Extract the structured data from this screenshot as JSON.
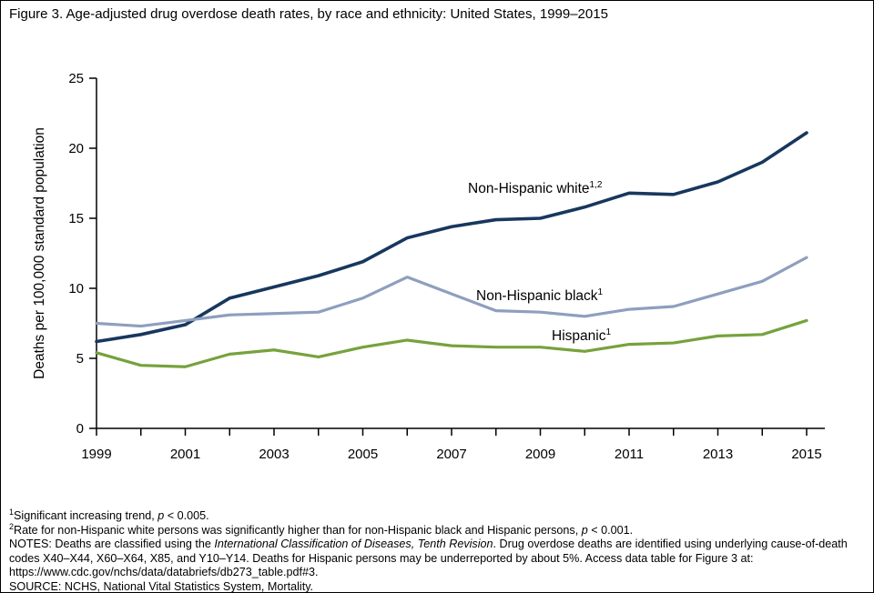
{
  "figure": {
    "title": "Figure 3. Age-adjusted drug overdose death rates, by race and ethnicity: United States, 1999–2015"
  },
  "chart_data": {
    "type": "line",
    "title": "Age-adjusted drug overdose death rates, by race and ethnicity: United States, 1999–2015",
    "x": [
      1999,
      2000,
      2001,
      2002,
      2003,
      2004,
      2005,
      2006,
      2007,
      2008,
      2009,
      2010,
      2011,
      2012,
      2013,
      2014,
      2015
    ],
    "x_labeled_ticks": [
      1999,
      2001,
      2003,
      2005,
      2007,
      2009,
      2011,
      2013,
      2015
    ],
    "xlabel": "",
    "ylabel": "Deaths per 100,000 standard population",
    "ylim": [
      0,
      25
    ],
    "yticks": [
      0,
      5,
      10,
      15,
      20,
      25
    ],
    "grid": false,
    "legend_position": "inline-labels",
    "series": [
      {
        "name": "Non-Hispanic white",
        "sup": "1,2",
        "color": "#17375e",
        "values": [
          6.2,
          6.7,
          7.4,
          9.3,
          10.1,
          10.9,
          11.9,
          13.6,
          14.4,
          14.9,
          15.0,
          15.8,
          16.8,
          16.7,
          17.6,
          19.0,
          21.1
        ]
      },
      {
        "name": "Non-Hispanic black",
        "sup": "1",
        "color": "#8e9fbe",
        "values": [
          7.5,
          7.3,
          7.7,
          8.1,
          8.2,
          8.3,
          9.3,
          10.8,
          9.6,
          8.4,
          8.3,
          8.0,
          8.5,
          8.7,
          9.6,
          10.5,
          12.2
        ]
      },
      {
        "name": "Hispanic",
        "sup": "1",
        "color": "#76a23d",
        "values": [
          5.4,
          4.5,
          4.4,
          5.3,
          5.6,
          5.1,
          5.8,
          6.3,
          5.9,
          5.8,
          5.8,
          5.5,
          6.0,
          6.1,
          6.6,
          6.7,
          7.7
        ]
      }
    ]
  },
  "footnotes": [
    [
      {
        "t": "1",
        "s": true
      },
      {
        "t": "Significant increasing trend, "
      },
      {
        "t": "p",
        "i": true
      },
      {
        "t": " < 0.005."
      }
    ],
    [
      {
        "t": "2",
        "s": true
      },
      {
        "t": "Rate for non-Hispanic white persons was significantly higher than for non-Hispanic black and Hispanic persons, "
      },
      {
        "t": "p",
        "i": true
      },
      {
        "t": " < 0.001."
      }
    ],
    [
      {
        "t": "NOTES: Deaths are classified using the "
      },
      {
        "t": "International Classification of Diseases, Tenth Revision",
        "i": true
      },
      {
        "t": ". Drug overdose deaths are identified using underlying cause-of-death codes X40–X44, X60–X64, X85, and Y10–Y14. Deaths for Hispanic persons may be underreported by about 5%. Access data table for Figure 3 at: https://www.cdc.gov/nchs/data/databriefs/db273_table.pdf#3."
      }
    ],
    [
      {
        "t": "SOURCE: NCHS, National Vital Statistics System, Mortality."
      }
    ]
  ]
}
